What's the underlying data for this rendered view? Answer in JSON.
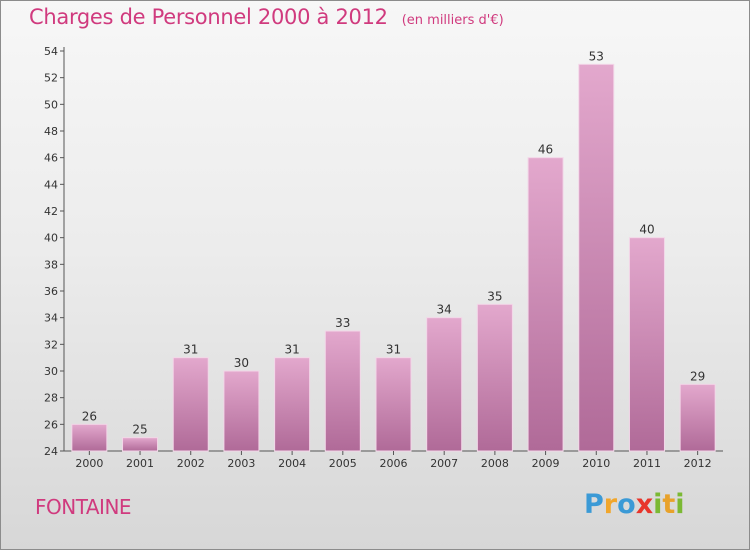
{
  "header": {
    "title": "Charges de Personnel 2000 à 2012",
    "subtitle": "(en milliers d'€)"
  },
  "footer": {
    "commune": "FONTAINE",
    "logo_text": "Proxiti"
  },
  "colors": {
    "accent": "#d03a7e",
    "bar_top": "#e3a8cd",
    "bar_bottom": "#b06a98"
  },
  "chart_data": {
    "type": "bar",
    "title": "Charges de Personnel 2000 à 2012",
    "subtitle": "(en milliers d'€)",
    "categories": [
      "2000",
      "2001",
      "2002",
      "2003",
      "2004",
      "2005",
      "2006",
      "2007",
      "2008",
      "2009",
      "2010",
      "2011",
      "2012"
    ],
    "values": [
      26,
      25,
      31,
      30,
      31,
      33,
      31,
      34,
      35,
      46,
      53,
      40,
      29
    ],
    "ylim": [
      24,
      54
    ],
    "yticks": [
      24,
      26,
      28,
      30,
      32,
      34,
      36,
      38,
      40,
      42,
      44,
      46,
      48,
      50,
      52,
      54
    ],
    "grid": false,
    "data_labels": true
  }
}
